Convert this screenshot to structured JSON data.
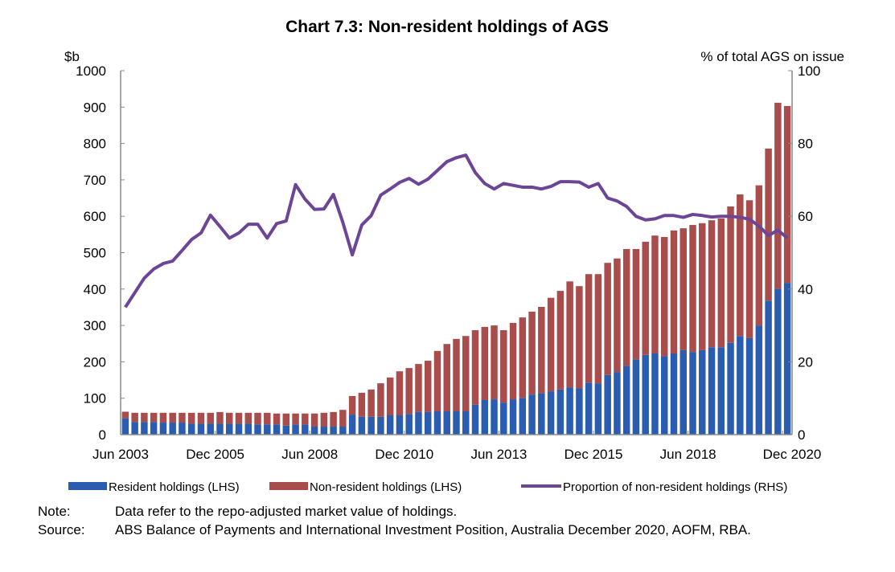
{
  "chart_data": {
    "type": "bar",
    "title": "Chart 7.3: Non-resident holdings of AGS",
    "ylabel_left": "$b",
    "ylabel_right": "% of total AGS on issue",
    "ylim_left": [
      0,
      1000
    ],
    "ylim_right": [
      0,
      100
    ],
    "yticks_left": [
      0,
      100,
      200,
      300,
      400,
      500,
      600,
      700,
      800,
      900,
      1000
    ],
    "yticks_right": [
      0,
      20,
      40,
      60,
      80,
      100
    ],
    "x_tick_labels": [
      "Jun 2003",
      "Dec 2005",
      "Jun 2008",
      "Dec 2010",
      "Jun 2013",
      "Dec 2015",
      "Jun 2018",
      "Dec 2020"
    ],
    "x_start": "Jun 2003",
    "x_end": "Dec 2020",
    "frequency": "quarterly",
    "grid": false,
    "legend_placement": "bottom",
    "stacked": true,
    "series": [
      {
        "name": "Resident holdings (LHS)",
        "type": "bar",
        "axis": "left",
        "color": "#2a5db0",
        "values": [
          45,
          35,
          35,
          35,
          33,
          33,
          33,
          30,
          30,
          30,
          30,
          30,
          30,
          30,
          28,
          28,
          28,
          25,
          28,
          28,
          22,
          22,
          22,
          22,
          55,
          49,
          49,
          49,
          53,
          53,
          57,
          62,
          62,
          64,
          64,
          64,
          64,
          82,
          95,
          97,
          88,
          97,
          101,
          110,
          114,
          119,
          124,
          130,
          127,
          143,
          141,
          164,
          172,
          189,
          207,
          219,
          223,
          216,
          223,
          232,
          227,
          232,
          240,
          240,
          252,
          271,
          265,
          300,
          368,
          401,
          417
        ]
      },
      {
        "name": "Non-resident holdings (LHS)",
        "type": "bar",
        "axis": "left",
        "color": "#a84c4c",
        "values": [
          18,
          25,
          25,
          25,
          27,
          27,
          27,
          30,
          30,
          30,
          32,
          30,
          30,
          30,
          32,
          32,
          30,
          33,
          30,
          30,
          36,
          38,
          40,
          46,
          51,
          66,
          75,
          92,
          104,
          121,
          126,
          132,
          141,
          166,
          185,
          199,
          207,
          205,
          201,
          203,
          199,
          210,
          221,
          228,
          237,
          257,
          271,
          291,
          281,
          298,
          300,
          308,
          312,
          321,
          303,
          311,
          324,
          327,
          338,
          335,
          349,
          349,
          349,
          354,
          375,
          389,
          379,
          385,
          418,
          511,
          486
        ]
      },
      {
        "name": "Proportion of non-resident holdings (RHS)",
        "type": "line",
        "axis": "right",
        "color": "#6c4596",
        "values": [
          35,
          39,
          43,
          45.5,
          47,
          47.7,
          50.6,
          53.6,
          55.4,
          60.3,
          57.2,
          54,
          55.4,
          57.8,
          57.8,
          54,
          58,
          58.7,
          68.7,
          64.7,
          61.9,
          62,
          66,
          58.3,
          49.4,
          57.6,
          60.2,
          65.8,
          67.5,
          69.3,
          70.4,
          68.8,
          70.2,
          72.6,
          75,
          76.1,
          76.8,
          72,
          69,
          67.5,
          69,
          68.5,
          68,
          68,
          67.5,
          68.2,
          69.5,
          69.5,
          69.4,
          68,
          69,
          65,
          64.2,
          62.7,
          60,
          59,
          59.3,
          60.2,
          60.2,
          59.7,
          60.5,
          60.2,
          59.8,
          60,
          60,
          59.7,
          59.2,
          57.3,
          54.7,
          56.2,
          54
        ]
      }
    ]
  },
  "notes": {
    "note_label": "Note:",
    "note_text": "Data refer to the repo-adjusted market value of holdings.",
    "source_label": "Source:",
    "source_text": "ABS Balance of Payments and International Investment Position, Australia December 2020, AOFM, RBA."
  }
}
